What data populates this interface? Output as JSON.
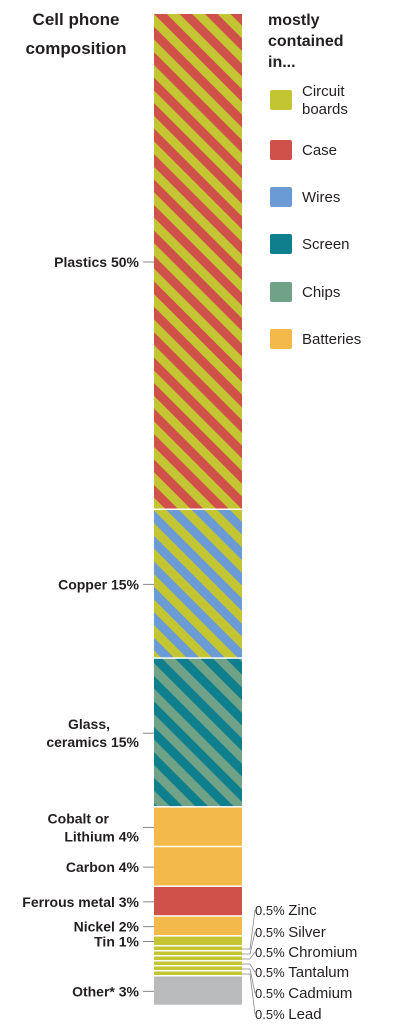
{
  "chart_data": {
    "type": "bar",
    "title": "Cell phone composition",
    "legend": {
      "title": "mostly contained in...",
      "placement": "right",
      "items": [
        {
          "label": "Circuit boards",
          "color": "#c4c532"
        },
        {
          "label": "Case",
          "color": "#d0504a"
        },
        {
          "label": "Wires",
          "color": "#6b9bd5"
        },
        {
          "label": "Screen",
          "color": "#0f7f8e"
        },
        {
          "label": "Chips",
          "color": "#6fa287"
        },
        {
          "label": "Batteries",
          "color": "#f3b94a"
        }
      ]
    },
    "segments": [
      {
        "label": "Plastics 50%",
        "value": 50,
        "fill": [
          "#c4c532",
          "#d0504a"
        ]
      },
      {
        "label": "Copper 15%",
        "value": 15,
        "fill": [
          "#c4c532",
          "#6b9bd5"
        ]
      },
      {
        "label": "Glass, ceramics 15%",
        "value": 15,
        "fill": [
          "#0f7f8e",
          "#6fa287"
        ]
      },
      {
        "label": "Cobalt or Lithium 4%",
        "value": 4,
        "fill": [
          "#f3b94a"
        ]
      },
      {
        "label": "Carbon 4%",
        "value": 4,
        "fill": [
          "#f3b94a"
        ]
      },
      {
        "label": "Ferrous metal 3%",
        "value": 3,
        "fill": [
          "#d0504a"
        ]
      },
      {
        "label": "Nickel 2%",
        "value": 2,
        "fill": [
          "#f3b94a"
        ]
      },
      {
        "label": "Tin 1%",
        "value": 1,
        "fill": [
          "#c4c532"
        ]
      },
      {
        "label": "",
        "value": 0.5,
        "fill": [
          "#c4c532"
        ]
      },
      {
        "label": "",
        "value": 0.5,
        "fill": [
          "#c4c532"
        ]
      },
      {
        "label": "",
        "value": 0.5,
        "fill": [
          "#c4c532"
        ]
      },
      {
        "label": "",
        "value": 0.5,
        "fill": [
          "#c4c532"
        ]
      },
      {
        "label": "",
        "value": 0.5,
        "fill": [
          "#c4c532"
        ]
      },
      {
        "label": "",
        "value": 0.5,
        "fill": [
          "#c4c532"
        ]
      },
      {
        "label": "Other* 3%",
        "value": 3,
        "fill": [
          "#b9babc"
        ]
      }
    ],
    "small_items": [
      {
        "label": "0.5% Zinc"
      },
      {
        "label": "0.5% Silver"
      },
      {
        "label": "0.5% Chromium"
      },
      {
        "label": "0.5% Tantalum"
      },
      {
        "label": "0.5% Cadmium"
      },
      {
        "label": "0.5% Lead"
      }
    ]
  }
}
